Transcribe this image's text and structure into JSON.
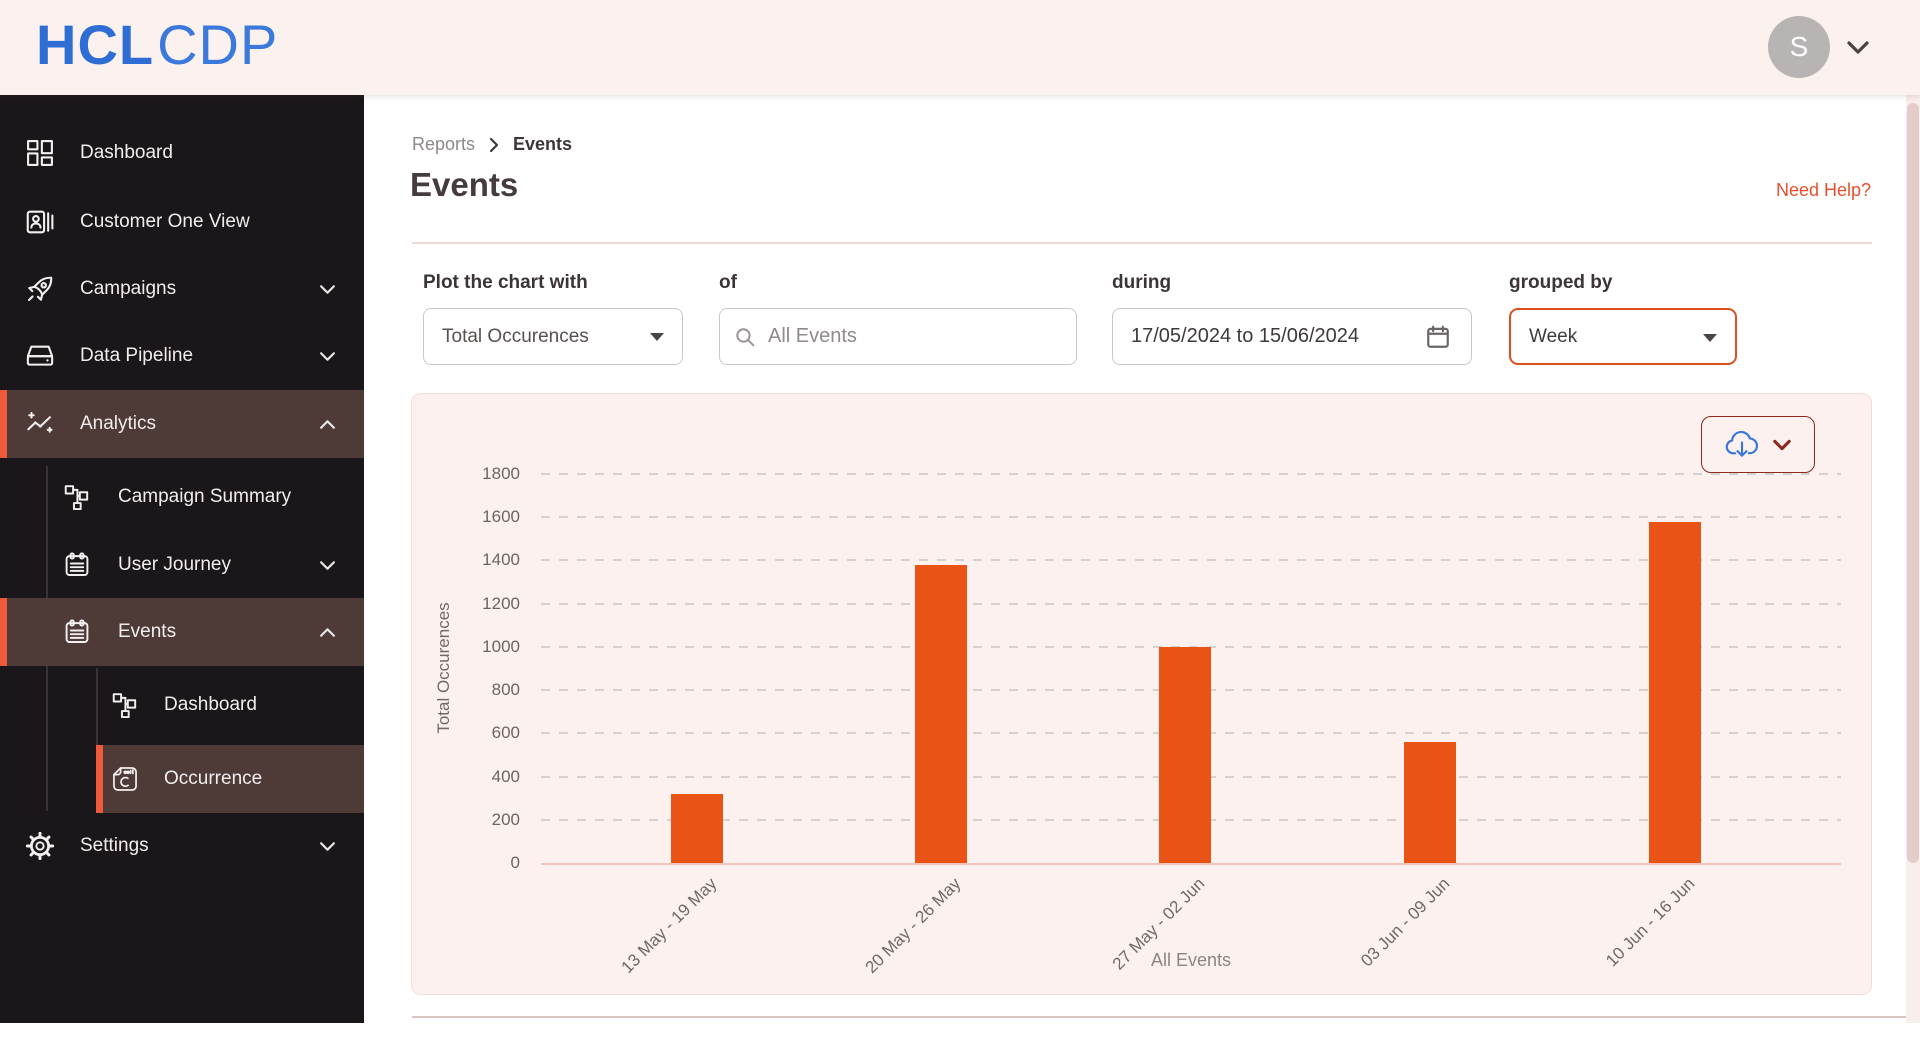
{
  "header": {
    "logo_hcl": "HCL",
    "logo_cdp": "CDP",
    "avatar_initial": "S"
  },
  "breadcrumb": {
    "parent": "Reports",
    "current": "Events"
  },
  "page": {
    "title": "Events",
    "help_link": "Need Help?"
  },
  "sidebar": {
    "items": [
      {
        "label": "Dashboard",
        "icon": "dashboard-grid-icon",
        "level": 0,
        "active": false,
        "chevron": "none"
      },
      {
        "label": "Customer One View",
        "icon": "customer-card-icon",
        "level": 0,
        "active": false,
        "chevron": "none"
      },
      {
        "label": "Campaigns",
        "icon": "rocket-icon",
        "level": 0,
        "active": false,
        "chevron": "down"
      },
      {
        "label": "Data Pipeline",
        "icon": "drive-icon",
        "level": 0,
        "active": false,
        "chevron": "down"
      },
      {
        "label": "Analytics",
        "icon": "analytics-sparkline-icon",
        "level": 0,
        "active": true,
        "chevron": "up"
      },
      {
        "label": "Campaign Summary",
        "icon": "sitemap-icon",
        "level": 1,
        "active": false,
        "chevron": "none"
      },
      {
        "label": "User Journey",
        "icon": "calendar-icon",
        "level": 1,
        "active": false,
        "chevron": "down"
      },
      {
        "label": "Events",
        "icon": "calendar-icon",
        "level": 1,
        "active": true,
        "chevron": "up"
      },
      {
        "label": "Dashboard",
        "icon": "sitemap-icon",
        "level": 2,
        "active": false,
        "chevron": "none"
      },
      {
        "label": "Occurrence",
        "icon": "report-icon",
        "level": 2,
        "active": true,
        "chevron": "none"
      },
      {
        "label": "Settings",
        "icon": "gear-icon",
        "level": 0,
        "active": false,
        "chevron": "down"
      }
    ]
  },
  "filters": {
    "plot_label": "Plot the chart with",
    "plot_value": "Total Occurences",
    "of_label": "of",
    "of_placeholder": "All Events",
    "during_label": "during",
    "during_value": "17/05/2024 to 15/06/2024",
    "grouped_label": "grouped by",
    "grouped_value": "Week"
  },
  "chart_data": {
    "type": "bar",
    "categories": [
      "13 May - 19 May",
      "20 May - 26 May",
      "27 May - 02 Jun",
      "03 Jun - 09 Jun",
      "10 Jun - 16 Jun"
    ],
    "values": [
      320,
      1380,
      1000,
      560,
      1580
    ],
    "xlabel": "All Events",
    "ylabel": "Total Occurences",
    "ylim": [
      0,
      1800
    ],
    "ytick_step": 200,
    "grid": "horizontal-dashed",
    "legend": "none",
    "bar_color": "#EA5316"
  },
  "colors": {
    "brand_blue": "#2E6ED4",
    "accent_orange": "#EA5316",
    "nav_active_bg": "#4E3B38",
    "nav_active_border": "#F05A3C",
    "header_bg": "#FBF1EE",
    "panel_bg": "#FCF1EE",
    "help_link": "#E8502C",
    "week_border": "#DE4F1F",
    "download_border": "#8C2A22",
    "cloud_blue": "#3B77D8"
  }
}
